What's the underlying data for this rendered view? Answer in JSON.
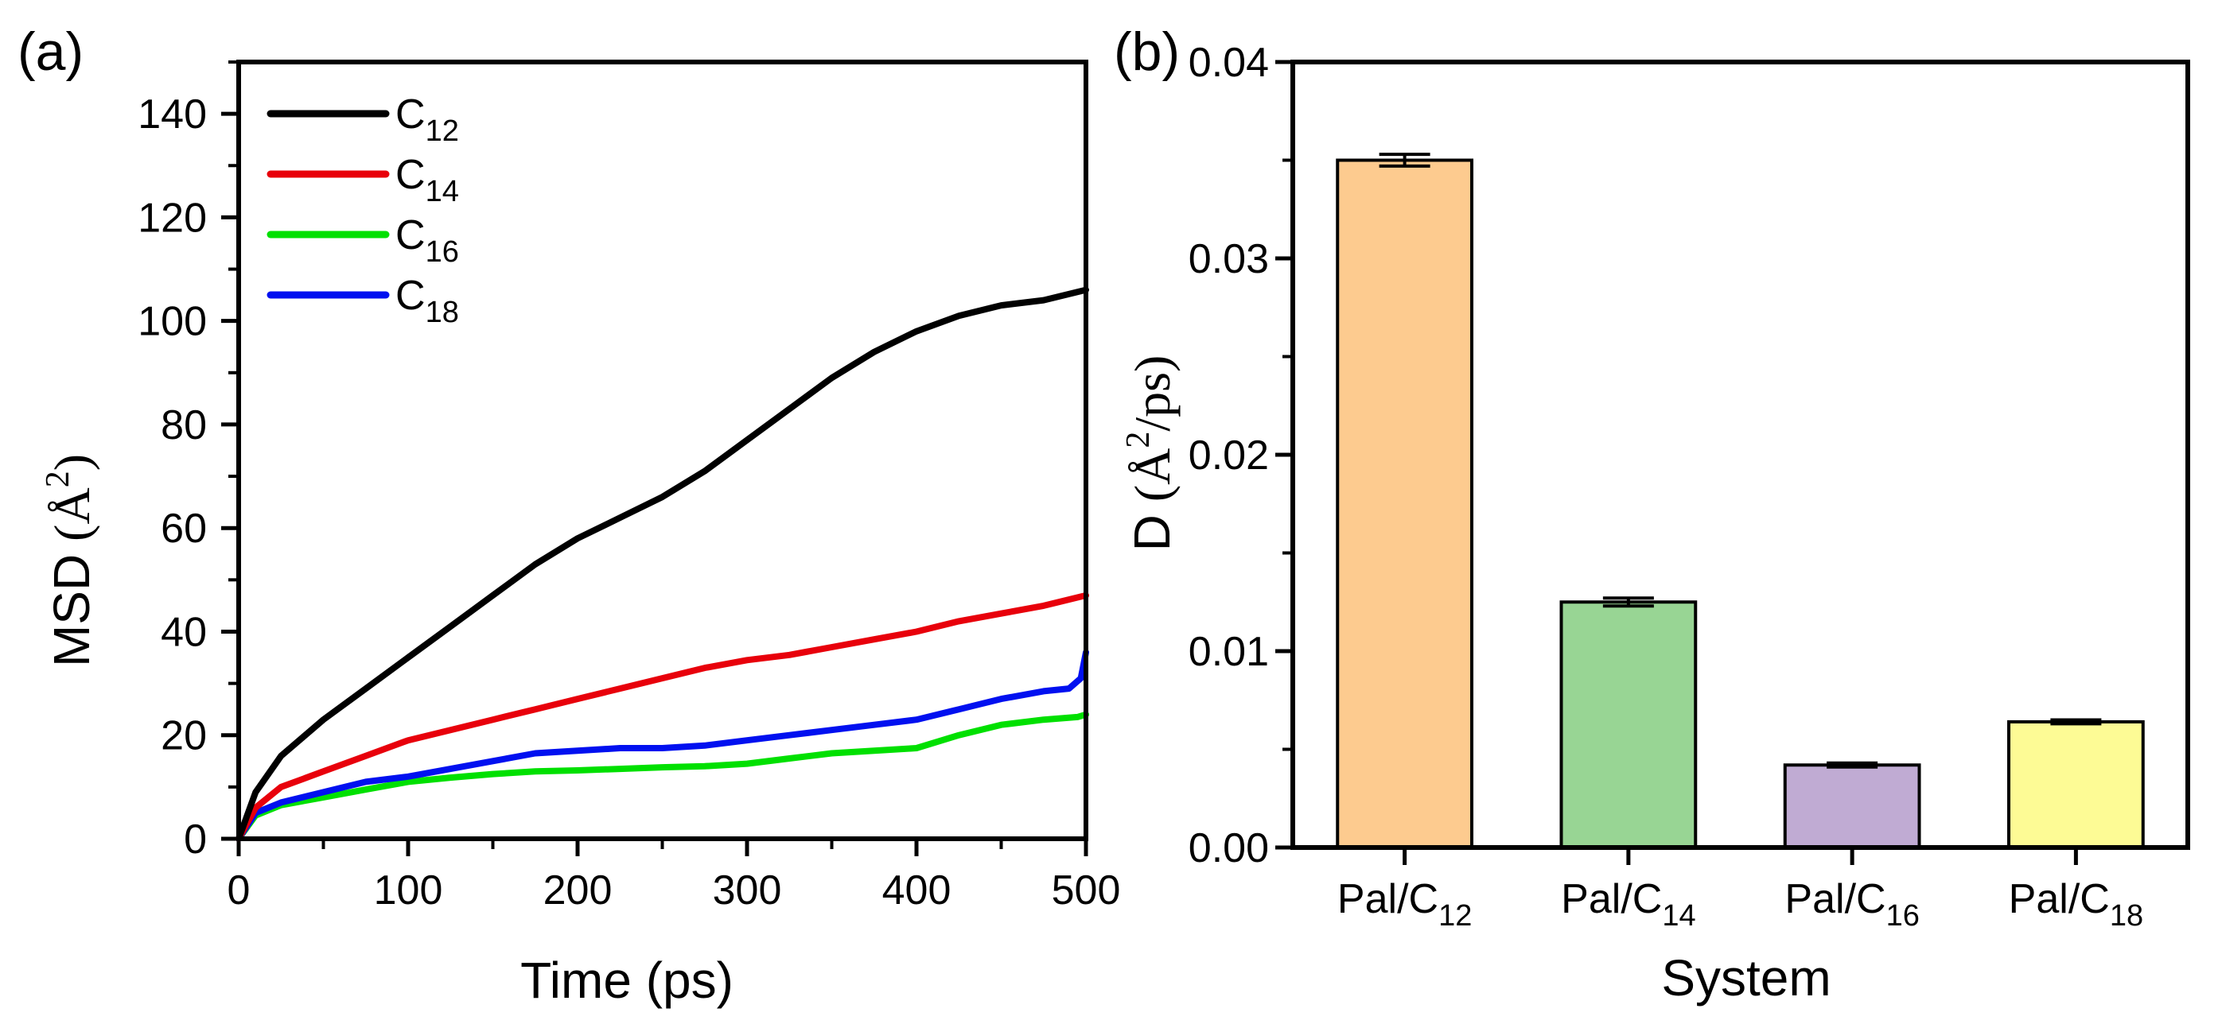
{
  "chart_data": [
    {
      "panel_label": "(a)",
      "type": "line",
      "xlabel": "Time (ps)",
      "ylabel_prefix": "MSD",
      "ylabel_unit": "(Å",
      "ylabel_sup": "2",
      "ylabel_close": ")",
      "xlim": [
        0,
        500
      ],
      "ylim": [
        0,
        150
      ],
      "xticks": [
        0,
        100,
        200,
        300,
        400,
        500
      ],
      "xtick_labels": [
        "0",
        "100",
        "200",
        "300",
        "400",
        "500"
      ],
      "yticks": [
        0,
        20,
        40,
        60,
        80,
        100,
        120,
        140
      ],
      "ytick_labels": [
        "0",
        "20",
        "40",
        "60",
        "80",
        "100",
        "120",
        "140"
      ],
      "legend_position": "top-left",
      "series": [
        {
          "name": "C12",
          "label_base": "C",
          "label_sub": "12",
          "color": "#000000",
          "x": [
            0,
            10,
            25,
            50,
            75,
            100,
            125,
            150,
            175,
            200,
            225,
            250,
            275,
            300,
            325,
            350,
            375,
            400,
            425,
            450,
            475,
            500
          ],
          "y": [
            0,
            9,
            16,
            23,
            29,
            35,
            41,
            47,
            53,
            58,
            62,
            66,
            71,
            77,
            83,
            89,
            94,
            98,
            101,
            103,
            104,
            106
          ]
        },
        {
          "name": "C14",
          "label_base": "C",
          "label_sub": "14",
          "color": "#e8000b",
          "x": [
            0,
            10,
            25,
            50,
            75,
            100,
            125,
            150,
            175,
            200,
            225,
            250,
            275,
            300,
            325,
            350,
            375,
            400,
            425,
            450,
            475,
            500
          ],
          "y": [
            0,
            6,
            10,
            13,
            16,
            19,
            21,
            23,
            25,
            27,
            29,
            31,
            33,
            34.5,
            35.5,
            37,
            38.5,
            40,
            42,
            43.5,
            45,
            47
          ]
        },
        {
          "name": "C16",
          "label_base": "C",
          "label_sub": "16",
          "color": "#00e000",
          "x": [
            0,
            10,
            25,
            50,
            75,
            100,
            125,
            150,
            175,
            200,
            225,
            250,
            275,
            300,
            325,
            350,
            375,
            400,
            425,
            450,
            475,
            495,
            500
          ],
          "y": [
            0,
            4.5,
            6.5,
            8,
            9.5,
            11,
            11.8,
            12.5,
            13,
            13.2,
            13.5,
            13.8,
            14,
            14.5,
            15.5,
            16.5,
            17,
            17.5,
            20,
            22,
            23,
            23.5,
            24
          ]
        },
        {
          "name": "C18",
          "label_base": "C",
          "label_sub": "18",
          "color": "#0010f0",
          "x": [
            0,
            10,
            25,
            50,
            75,
            100,
            125,
            150,
            175,
            200,
            225,
            250,
            275,
            300,
            325,
            350,
            375,
            400,
            425,
            450,
            475,
            490,
            497,
            500
          ],
          "y": [
            0,
            5,
            7,
            9,
            11,
            12,
            13.5,
            15,
            16.5,
            17,
            17.5,
            17.5,
            18,
            19,
            20,
            21,
            22,
            23,
            25,
            27,
            28.5,
            29,
            31,
            36
          ]
        }
      ]
    },
    {
      "panel_label": "(b)",
      "type": "bar",
      "xlabel": "System",
      "ylabel_prefix": "D",
      "ylabel_unit": "(Å",
      "ylabel_sup": "2",
      "ylabel_close": "/ps)",
      "ylim": [
        0,
        0.04
      ],
      "yticks": [
        0,
        0.01,
        0.02,
        0.03,
        0.04
      ],
      "ytick_labels": [
        "0.00",
        "0.01",
        "0.02",
        "0.03",
        "0.04"
      ],
      "categories": [
        {
          "base": "Pal/C",
          "sub": "12",
          "value": 0.035,
          "error": 0.0003,
          "color": "#fdcb8f"
        },
        {
          "base": "Pal/C",
          "sub": "14",
          "value": 0.0125,
          "error": 0.0002,
          "color": "#98d594"
        },
        {
          "base": "Pal/C",
          "sub": "16",
          "value": 0.0042,
          "error": 0.0001,
          "color": "#c0abd3"
        },
        {
          "base": "Pal/C",
          "sub": "18",
          "value": 0.0064,
          "error": 0.0001,
          "color": "#fdfb95"
        }
      ]
    }
  ]
}
